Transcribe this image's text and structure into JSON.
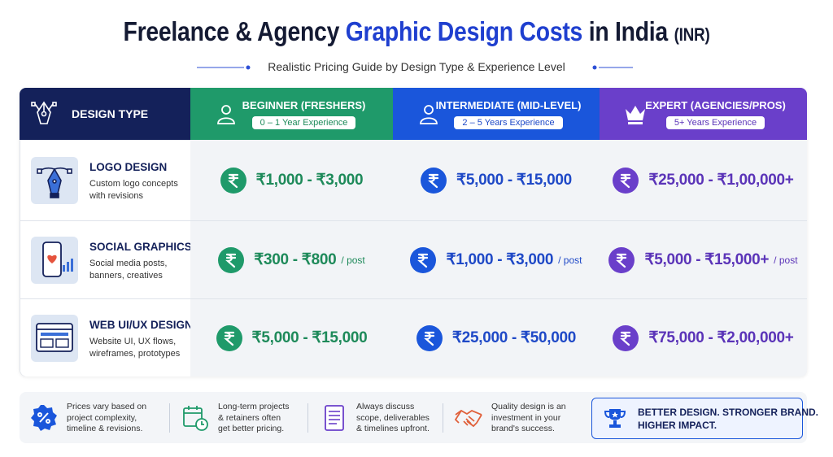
{
  "title": {
    "part1": "Freelance & Agency",
    "highlight": "Graphic Design Costs",
    "part2": "in India",
    "unit": "(INR)"
  },
  "subtitle": "Realistic Pricing Guide by Design Type & Experience Level",
  "table": {
    "header": {
      "label": "DESIGN TYPE",
      "columns": [
        {
          "title": "BEGINNER (FRESHERS)",
          "badge": "0 – 1 Year Experience"
        },
        {
          "title": "INTERMEDIATE (MID-LEVEL)",
          "badge": "2 – 5 Years Experience"
        },
        {
          "title": "EXPERT (AGENCIES/PROS)",
          "badge": "5+ Years Experience"
        }
      ]
    },
    "rows": [
      {
        "name": "LOGO DESIGN",
        "description": [
          "Custom logo concepts",
          "with revisions"
        ],
        "prices": [
          {
            "text": "₹1,000 - ₹3,000"
          },
          {
            "text": "₹5,000 - ₹15,000"
          },
          {
            "text": "₹25,000 - ₹1,00,000+"
          }
        ]
      },
      {
        "name": "SOCIAL GRAPHICS",
        "description": [
          "Social media posts,",
          "banners, creatives"
        ],
        "prices": [
          {
            "text": "₹300 - ₹800",
            "suffix": "/ post"
          },
          {
            "text": "₹1,000 - ₹3,000",
            "suffix": "/ post"
          },
          {
            "text": "₹5,000 - ₹15,000+",
            "suffix": "/ post"
          }
        ]
      },
      {
        "name": "WEB UI/UX DESIGN",
        "description": [
          "Website UI, UX flows,",
          "wireframes, prototypes"
        ],
        "prices": [
          {
            "text": "₹5,000 - ₹15,000"
          },
          {
            "text": "₹25,000 - ₹50,000"
          },
          {
            "text": "₹75,000 - ₹2,00,000+"
          }
        ]
      }
    ]
  },
  "notes": [
    {
      "lines": [
        "Prices vary based on",
        "project complexity,",
        "timeline & revisions."
      ]
    },
    {
      "lines": [
        "Long-term projects",
        "& retainers often",
        "get better pricing."
      ]
    },
    {
      "lines": [
        "Always discuss",
        "scope, deliverables",
        "& timelines upfront."
      ]
    },
    {
      "lines": [
        "Quality design is an",
        "investment in your",
        "brand's success."
      ]
    }
  ],
  "callout": [
    "BETTER DESIGN. STRONGER BRAND.",
    "HIGHER IMPACT."
  ]
}
